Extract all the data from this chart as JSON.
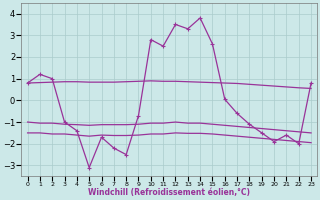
{
  "xlabel": "Windchill (Refroidissement éolien,°C)",
  "x": [
    0,
    1,
    2,
    3,
    4,
    5,
    6,
    7,
    8,
    9,
    10,
    11,
    12,
    13,
    14,
    15,
    16,
    17,
    18,
    19,
    20,
    21,
    22,
    23
  ],
  "y_main": [
    0.8,
    1.2,
    1.0,
    -1.0,
    -1.4,
    -3.1,
    -1.7,
    -2.2,
    -2.5,
    -0.7,
    2.8,
    2.5,
    3.5,
    3.3,
    3.8,
    2.6,
    0.05,
    -0.6,
    -1.1,
    -1.5,
    -1.9,
    -1.6,
    -2.0,
    0.8
  ],
  "y_upper": [
    0.8,
    0.82,
    0.84,
    0.86,
    0.86,
    0.84,
    0.84,
    0.84,
    0.86,
    0.88,
    0.9,
    0.88,
    0.88,
    0.86,
    0.84,
    0.82,
    0.8,
    0.78,
    0.74,
    0.7,
    0.66,
    0.62,
    0.58,
    0.55
  ],
  "y_mid": [
    -1.0,
    -1.05,
    -1.05,
    -1.1,
    -1.12,
    -1.15,
    -1.12,
    -1.12,
    -1.12,
    -1.1,
    -1.05,
    -1.05,
    -1.0,
    -1.05,
    -1.05,
    -1.1,
    -1.15,
    -1.2,
    -1.25,
    -1.3,
    -1.35,
    -1.4,
    -1.45,
    -1.5
  ],
  "y_lower": [
    -1.5,
    -1.5,
    -1.55,
    -1.55,
    -1.6,
    -1.65,
    -1.6,
    -1.62,
    -1.62,
    -1.6,
    -1.55,
    -1.55,
    -1.5,
    -1.52,
    -1.52,
    -1.55,
    -1.6,
    -1.65,
    -1.7,
    -1.75,
    -1.8,
    -1.85,
    -1.9,
    -1.95
  ],
  "ylim": [
    -3.5,
    4.5
  ],
  "xlim": [
    -0.5,
    23.5
  ],
  "yticks": [
    -3,
    -2,
    -1,
    0,
    1,
    2,
    3,
    4
  ],
  "bg_color": "#cce8e8",
  "grid_color": "#aacccc",
  "line_color": "#993399",
  "figsize": [
    3.2,
    2.0
  ],
  "dpi": 100
}
